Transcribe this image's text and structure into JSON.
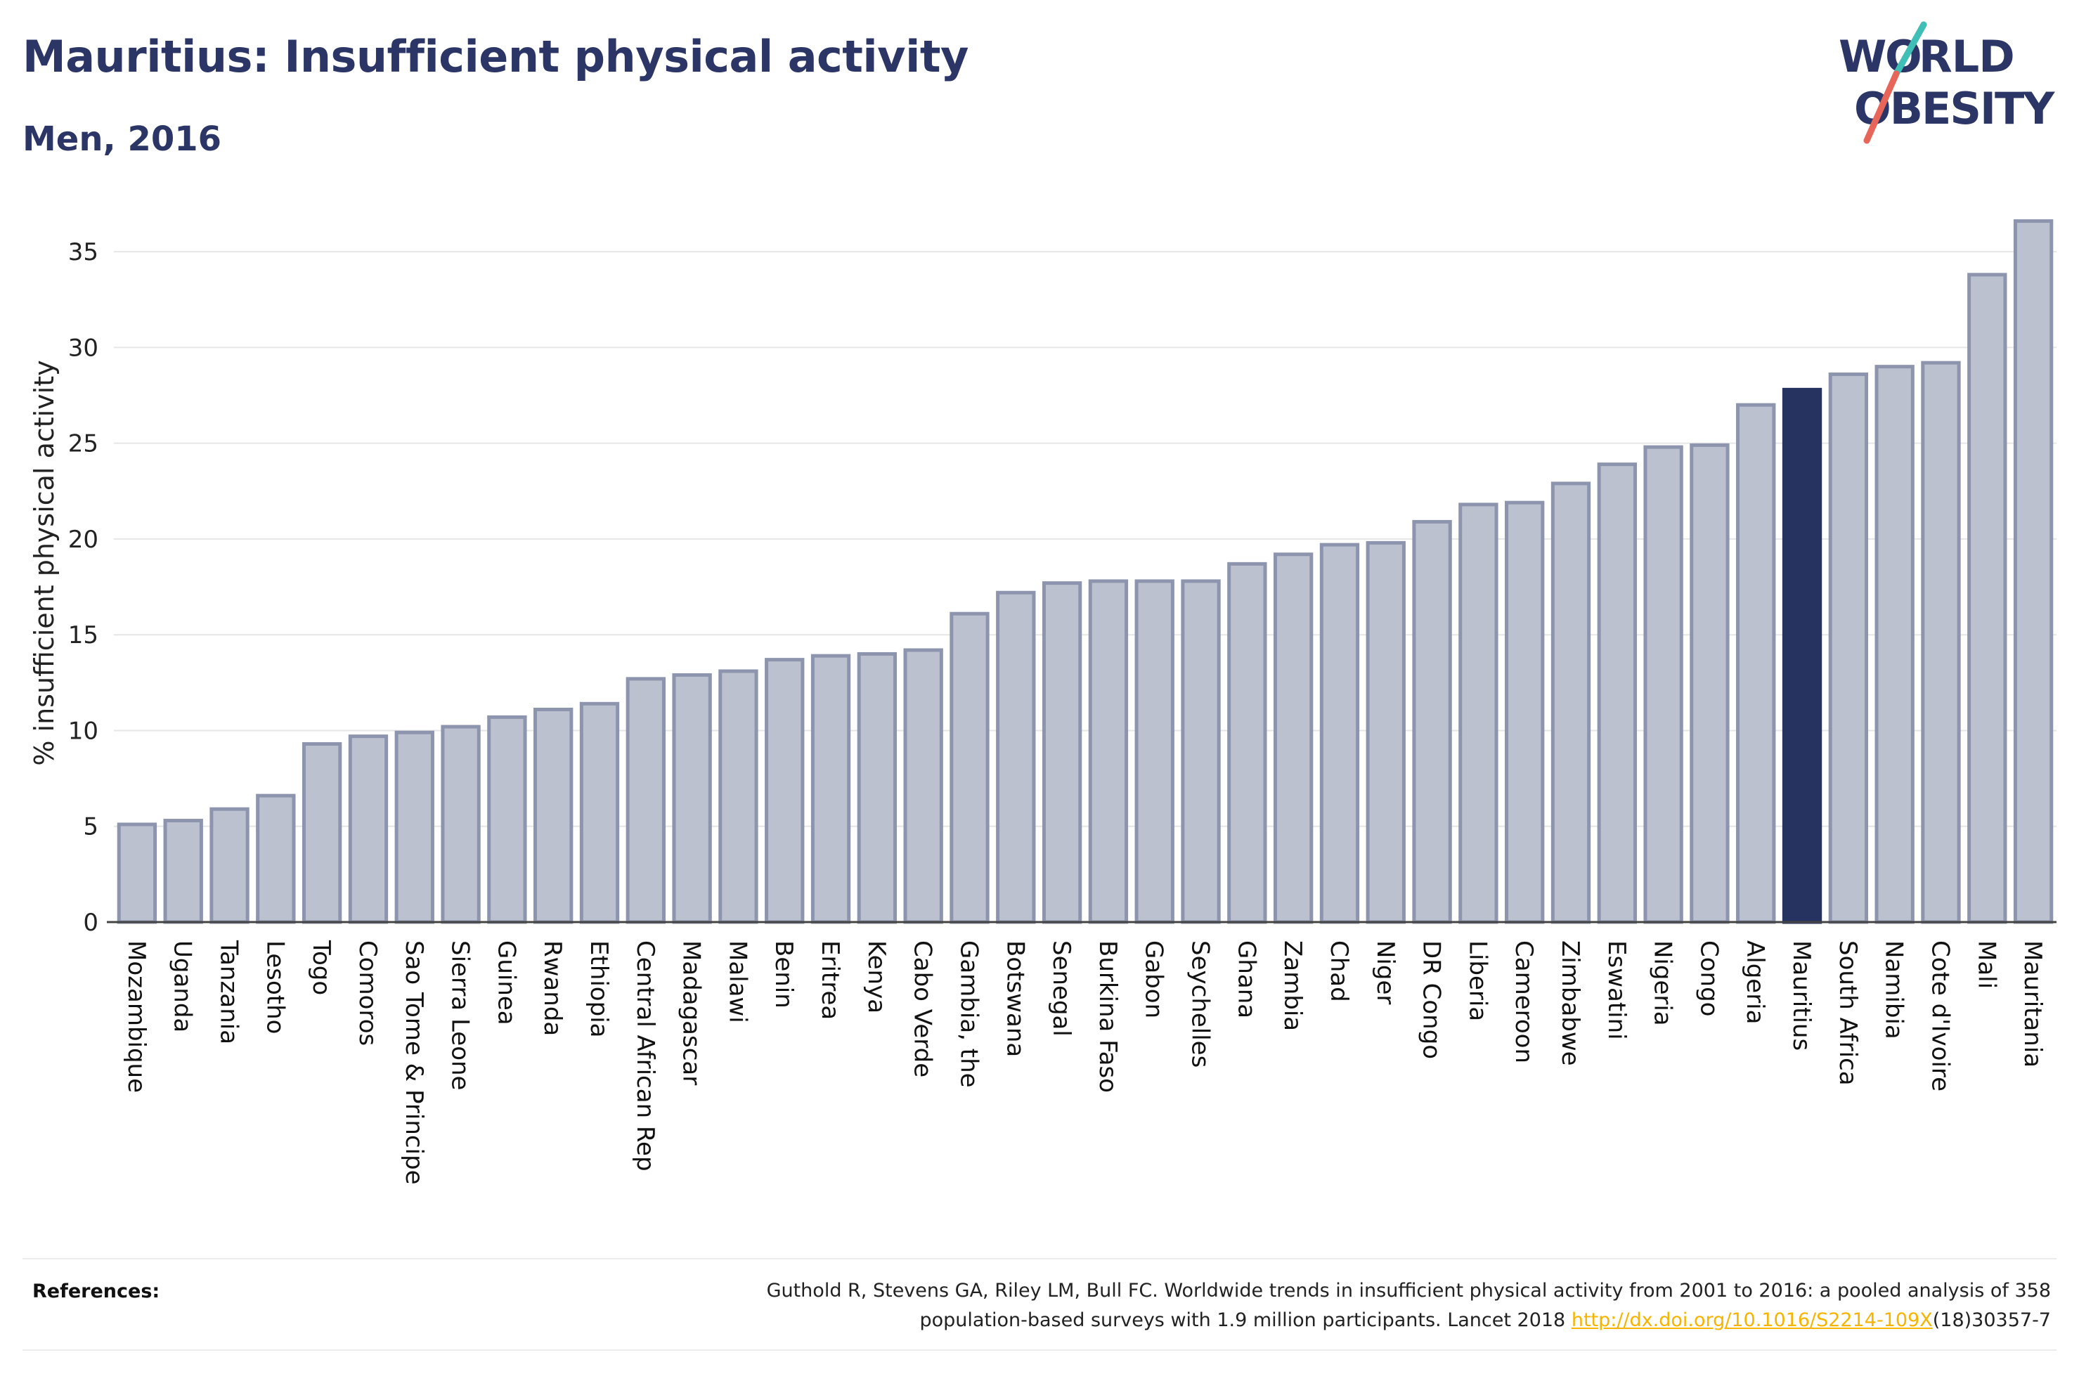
{
  "title": "Mauritius: Insufficient physical activity",
  "subtitle": "Men, 2016",
  "logo": {
    "line1": "WORLD",
    "line2": "OBESITY",
    "accent_color": "#3fbfb5",
    "slash_color": "#e8655a"
  },
  "colors": {
    "bar_fill": "#bcc1cf",
    "bar_stroke": "#8d94ad",
    "highlight": "#263260",
    "text": "#2b3566"
  },
  "chart_data": {
    "type": "bar",
    "ylabel": "% insufficient physical activity",
    "ylim": [
      0,
      37.5
    ],
    "yticks": [
      0,
      5,
      10,
      15,
      20,
      25,
      30,
      35
    ],
    "grid": true,
    "highlight": "Mauritius",
    "categories": [
      "Mozambique",
      "Uganda",
      "Tanzania",
      "Lesotho",
      "Togo",
      "Comoros",
      "Sao Tome & Principe",
      "Sierra Leone",
      "Guinea",
      "Rwanda",
      "Ethiopia",
      "Central African Rep",
      "Madagascar",
      "Malawi",
      "Benin",
      "Eritrea",
      "Kenya",
      "Cabo Verde",
      "Gambia, the",
      "Botswana",
      "Senegal",
      "Burkina Faso",
      "Gabon",
      "Seychelles",
      "Ghana",
      "Zambia",
      "Chad",
      "Niger",
      "DR Congo",
      "Liberia",
      "Cameroon",
      "Zimbabwe",
      "Eswatini",
      "Nigeria",
      "Congo",
      "Algeria",
      "Mauritius",
      "South Africa",
      "Namibia",
      "Cote d'Ivoire",
      "Mali",
      "Mauritania"
    ],
    "values": [
      5.1,
      5.3,
      5.9,
      6.6,
      9.3,
      9.7,
      9.9,
      10.2,
      10.7,
      11.1,
      11.4,
      12.7,
      12.9,
      13.1,
      13.7,
      13.9,
      14.0,
      14.2,
      16.1,
      17.2,
      17.7,
      17.8,
      17.8,
      17.8,
      18.7,
      19.2,
      19.7,
      19.8,
      20.9,
      21.8,
      21.9,
      22.9,
      23.9,
      24.8,
      24.9,
      27.0,
      27.8,
      28.6,
      29.0,
      29.2,
      33.8,
      36.6
    ]
  },
  "references": {
    "label": "References:",
    "line1": "Guthold R, Stevens GA, Riley LM, Bull FC. Worldwide trends in insufficient physical activity from 2001 to 2016: a pooled analysis of 358",
    "line2_prefix": "population-based surveys with 1.9 million participants. Lancet 2018 ",
    "link_text": "http://dx.doi.org/10.1016/S2214-109X",
    "line2_suffix": "(18)30357-7"
  }
}
